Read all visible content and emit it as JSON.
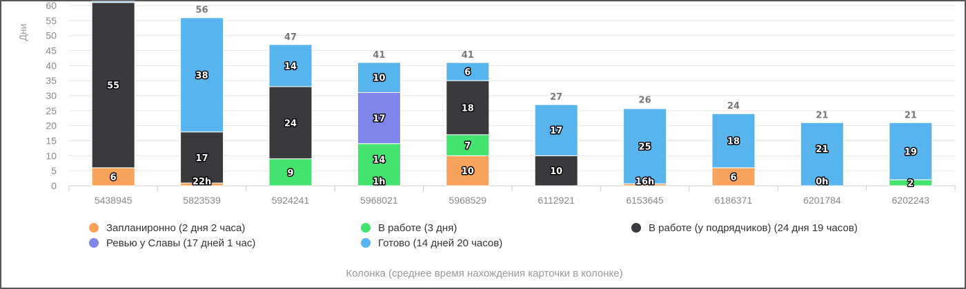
{
  "chart_data": {
    "type": "bar",
    "stacked": true,
    "ylabel": "Дни",
    "xlabel": "Колонка (среднее время нахождения карточки в колонке)",
    "ylim": [
      0,
      60
    ],
    "yticks": [
      0,
      5,
      10,
      15,
      20,
      25,
      30,
      35,
      40,
      45,
      50,
      55,
      60
    ],
    "grid": true,
    "legend_position": "bottom",
    "categories": [
      "5438945",
      "5823539",
      "5924241",
      "5968021",
      "5968529",
      "6112921",
      "6153645",
      "6186371",
      "6201784",
      "6202243"
    ],
    "totals": [
      "",
      "56",
      "47",
      "41",
      "41",
      "27",
      "26",
      "24",
      "21",
      "21"
    ],
    "series": [
      {
        "name": "Запланиронно (2 дня 2 часа)",
        "color": "#f7a35c",
        "values": [
          6,
          0.92,
          0,
          0,
          10,
          0,
          0.67,
          6,
          0,
          0
        ],
        "labels": [
          "6",
          "22h",
          "",
          "",
          "10",
          "",
          "16h",
          "6",
          "",
          ""
        ]
      },
      {
        "name": "В работе (3 дня)",
        "color": "#44e36f",
        "values": [
          0,
          0,
          9,
          14.04,
          7,
          0,
          0,
          0,
          0,
          2
        ],
        "labels": [
          "",
          "",
          "9",
          "14|1h",
          "7",
          "",
          "",
          "",
          "",
          "2"
        ]
      },
      {
        "name": "Ревью у Славы (17 дней 1 час)",
        "color": "#8085e9",
        "values": [
          0,
          0,
          0,
          17,
          0,
          0,
          0,
          0,
          0,
          0
        ],
        "labels": [
          "",
          "",
          "",
          "17",
          "",
          "",
          "",
          "",
          "",
          ""
        ]
      },
      {
        "name": "В работе (у подрядчиков) (24 дня 19 часов)",
        "color": "#3a3a3e",
        "values": [
          55,
          17,
          24,
          0,
          18,
          10,
          0,
          0,
          0,
          0
        ],
        "labels": [
          "55",
          "17",
          "24",
          "",
          "18",
          "10",
          "",
          "",
          "",
          ""
        ]
      },
      {
        "name": "Готово (14 дней 20 часов)",
        "color": "#58b4ec",
        "values": [
          1,
          38,
          14,
          10,
          6,
          17,
          25,
          18,
          21,
          19
        ],
        "labels": [
          "",
          "38",
          "14",
          "10",
          "6",
          "17",
          "25",
          "18",
          "21|0h",
          "19"
        ]
      }
    ],
    "legend_order": [
      0,
      1,
      3,
      2,
      4
    ]
  }
}
